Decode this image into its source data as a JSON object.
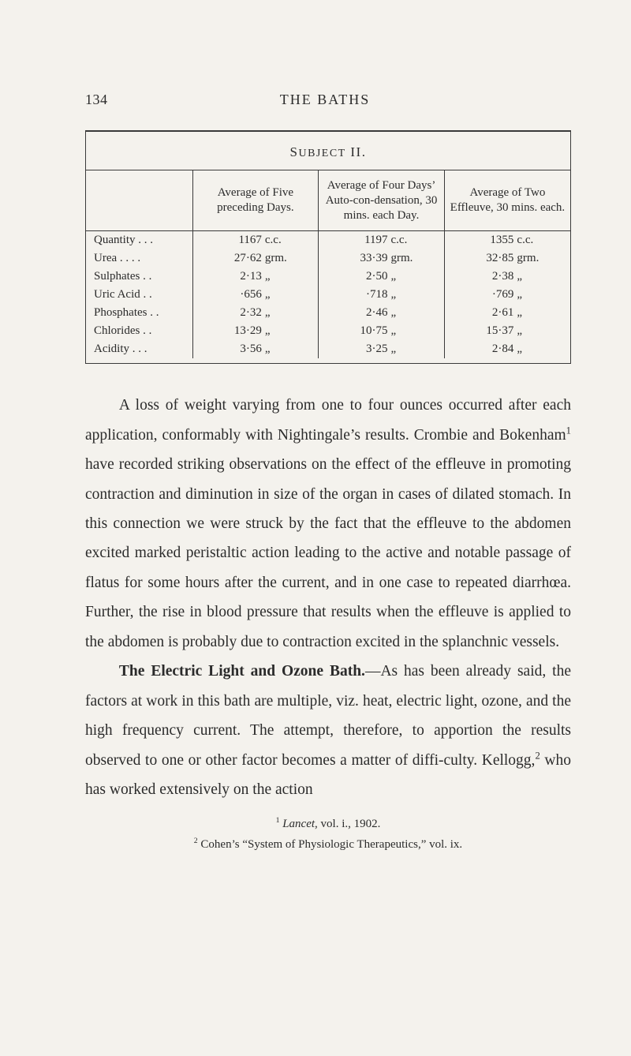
{
  "colors": {
    "background": "#f4f2ed",
    "text": "#2b2b2b",
    "rule": "#3a3a3a"
  },
  "typography": {
    "body_fontsize_pt": 15,
    "body_lineheight": 1.92,
    "header_fontsize_pt": 14,
    "table_fontsize_pt": 11,
    "font_family": "Century Schoolbook / serif"
  },
  "page": {
    "number": "134",
    "running_title": "THE BATHS"
  },
  "table": {
    "title_html": "S<span style='font-size:0.82em'>UBJECT</span> II.",
    "columns": [
      "",
      "Average of Five preceding Days.",
      "Average of Four Days’ Auto-con-densation, 30 mins. each Day.",
      "Average of Two Effleuve, 30 mins. each."
    ],
    "col_widths_pct": [
      22,
      26,
      26,
      26
    ],
    "rule_color": "#3a3a3a",
    "rows": [
      {
        "label": "Quantity .  .  .",
        "v1": {
          "n": "1167",
          "u": "c.c."
        },
        "v2": {
          "n": "1197",
          "u": "c.c."
        },
        "v3": {
          "n": "1355",
          "u": "c.c."
        }
      },
      {
        "label": "Urea  .  .  .  .",
        "v1": {
          "n": "27·62",
          "u": "grm."
        },
        "v2": {
          "n": "33·39",
          "u": "grm."
        },
        "v3": {
          "n": "32·85",
          "u": "grm."
        }
      },
      {
        "label": "Sulphates  .  .",
        "v1": {
          "n": "2·13",
          "u": "„"
        },
        "v2": {
          "n": "2·50",
          "u": "„"
        },
        "v3": {
          "n": "2·38",
          "u": "„"
        }
      },
      {
        "label": "Uric Acid  .  .",
        "v1": {
          "n": "·656",
          "u": "„"
        },
        "v2": {
          "n": "·718",
          "u": "„"
        },
        "v3": {
          "n": "·769",
          "u": "„"
        }
      },
      {
        "label": "Phosphates .  .",
        "v1": {
          "n": "2·32",
          "u": "„"
        },
        "v2": {
          "n": "2·46",
          "u": "„"
        },
        "v3": {
          "n": "2·61",
          "u": "„"
        }
      },
      {
        "label": "Chlorides  .  .",
        "v1": {
          "n": "13·29",
          "u": "„"
        },
        "v2": {
          "n": "10·75",
          "u": "„"
        },
        "v3": {
          "n": "15·37",
          "u": "„"
        }
      },
      {
        "label": "Acidity  .  .  .",
        "v1": {
          "n": "3·56",
          "u": "„"
        },
        "v2": {
          "n": "3·25",
          "u": "„"
        },
        "v3": {
          "n": "2·84",
          "u": "„"
        }
      }
    ]
  },
  "body": {
    "para1_html": "A loss of weight varying from one to four ounces occurred after each application, conformably with Nightingale’s results. Crombie and Bokenham<sup>1</sup> have recorded striking observations on the effect of the effleuve in promoting contraction and diminution in size of the organ in cases of dilated stomach. In this connection we were struck by the fact that the effleuve to the abdomen excited marked peristaltic action leading to the active and notable passage of flatus for some hours after the current, and in one case to repeated diarrhœa. Further, the rise in blood pressure that results when the effleuve is applied to the abdomen is probably due to contraction excited in the splanchnic vessels.",
    "para2_html": "<span class='bold'>The Electric Light and Ozone Bath.</span>—As has been already said, the factors at work in this bath are multiple, viz. heat, electric light, ozone, and the high frequency current. The attempt, therefore, to apportion the results observed to one or other factor becomes a matter of diffi-culty. Kellogg,<sup>2</sup> who has worked extensively on the action"
  },
  "footnotes": {
    "f1_html": "<sup>1</sup> <i>Lancet</i>, vol. i., 1902.",
    "f2_html": "<sup>2</sup> Cohen’s “System of Physiologic Therapeutics,” vol. ix."
  }
}
